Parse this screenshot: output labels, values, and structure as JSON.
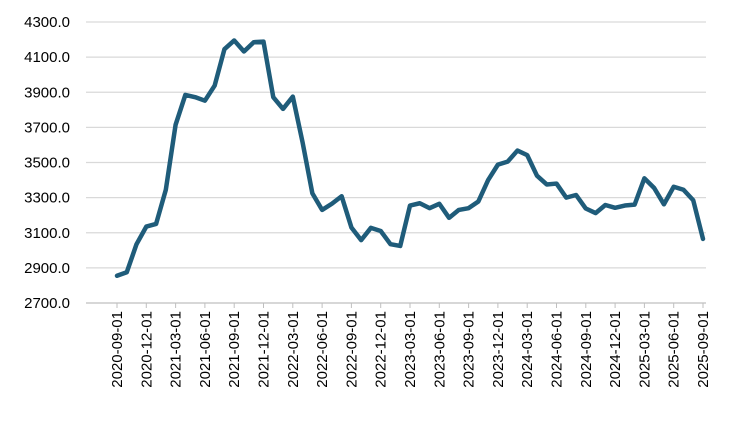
{
  "chart_data": {
    "type": "line",
    "title": "",
    "xlabel": "",
    "ylabel": "",
    "ylim": [
      2700,
      4300
    ],
    "yticks": [
      "2700.0",
      "2900.0",
      "3100.0",
      "3300.0",
      "3500.0",
      "3700.0",
      "3900.0",
      "4100.0",
      "4300.0"
    ],
    "xtick_labels": [
      "2020-09-01",
      "2020-12-01",
      "2021-03-01",
      "2021-06-01",
      "2021-09-01",
      "2021-12-01",
      "2022-03-01",
      "2022-06-01",
      "2022-09-01",
      "2022-12-01",
      "2023-03-01",
      "2023-06-01",
      "2023-09-01",
      "2023-12-01",
      "2024-03-01",
      "2024-06-01",
      "2024-09-01",
      "2024-12-01",
      "2025-03-01",
      "2025-06-01",
      "2025-09-01"
    ],
    "grid": true,
    "legend": "none",
    "color": "#1f5c7a",
    "x": [
      "2020-09-01",
      "2020-10-01",
      "2020-11-01",
      "2020-12-01",
      "2021-01-01",
      "2021-02-01",
      "2021-03-01",
      "2021-04-01",
      "2021-05-01",
      "2021-06-01",
      "2021-07-01",
      "2021-08-01",
      "2021-09-01",
      "2021-10-01",
      "2021-11-01",
      "2021-12-01",
      "2022-01-01",
      "2022-02-01",
      "2022-03-01",
      "2022-04-01",
      "2022-05-01",
      "2022-06-01",
      "2022-07-01",
      "2022-08-01",
      "2022-09-01",
      "2022-10-01",
      "2022-11-01",
      "2022-12-01",
      "2023-01-01",
      "2023-02-01",
      "2023-03-01",
      "2023-04-01",
      "2023-05-01",
      "2023-06-01",
      "2023-07-01",
      "2023-08-01",
      "2023-09-01",
      "2023-10-01",
      "2023-11-01",
      "2023-12-01",
      "2024-01-01",
      "2024-02-01",
      "2024-03-01",
      "2024-04-01",
      "2024-05-01",
      "2024-06-01",
      "2024-07-01",
      "2024-08-01",
      "2024-09-01",
      "2024-10-01",
      "2024-11-01",
      "2024-12-01",
      "2025-01-01",
      "2025-02-01",
      "2025-03-01",
      "2025-04-01",
      "2025-05-01",
      "2025-06-01",
      "2025-07-01",
      "2025-08-01",
      "2025-09-01"
    ],
    "values": [
      2855,
      2875,
      3035,
      3135,
      3150,
      3345,
      3715,
      3885,
      3872,
      3852,
      3938,
      4145,
      4195,
      4132,
      4185,
      4188,
      3872,
      3805,
      3875,
      3615,
      3325,
      3230,
      3265,
      3308,
      3130,
      3058,
      3128,
      3110,
      3035,
      3025,
      3255,
      3268,
      3240,
      3265,
      3185,
      3230,
      3240,
      3278,
      3400,
      3488,
      3505,
      3568,
      3542,
      3425,
      3375,
      3380,
      3300,
      3315,
      3238,
      3212,
      3258,
      3242,
      3255,
      3260,
      3410,
      3355,
      3262,
      3362,
      3345,
      3285,
      3065
    ]
  }
}
